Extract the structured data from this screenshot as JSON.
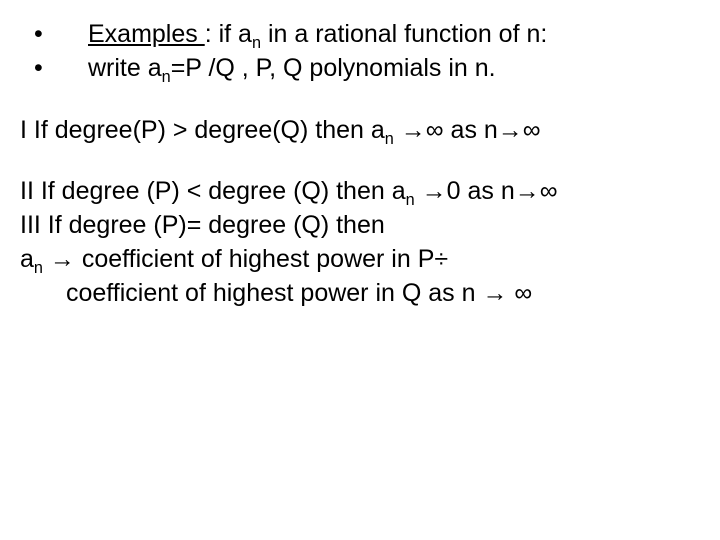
{
  "colors": {
    "background": "#ffffff",
    "text": "#000000"
  },
  "font": {
    "family": "Arial",
    "size_pt": 25
  },
  "bullets": [
    "•",
    "•"
  ],
  "line1": {
    "label": "Examples ",
    "rest1": ": if a",
    "sub1": "n",
    "rest2": " in a rational function of n:"
  },
  "line2": {
    "pre": "write  a",
    "sub": "n",
    "rest": "=P  /Q , P, Q  polynomials in n."
  },
  "caseI": {
    "pre": "I If degree(P) > degree(Q) then a",
    "sub": "n",
    "mid": " →∞ as n→∞"
  },
  "caseII": {
    "pre": "II If degree (P) < degree (Q) then a",
    "sub": "n",
    "mid": " →0 as n→∞"
  },
  "caseIII": "III If degree (P)= degree (Q) then",
  "limit": {
    "pre": "a",
    "sub": "n",
    "mid": " →  coefficient of highest power in P÷"
  },
  "limit2": "coefficient of highest power in Q as n → ∞"
}
